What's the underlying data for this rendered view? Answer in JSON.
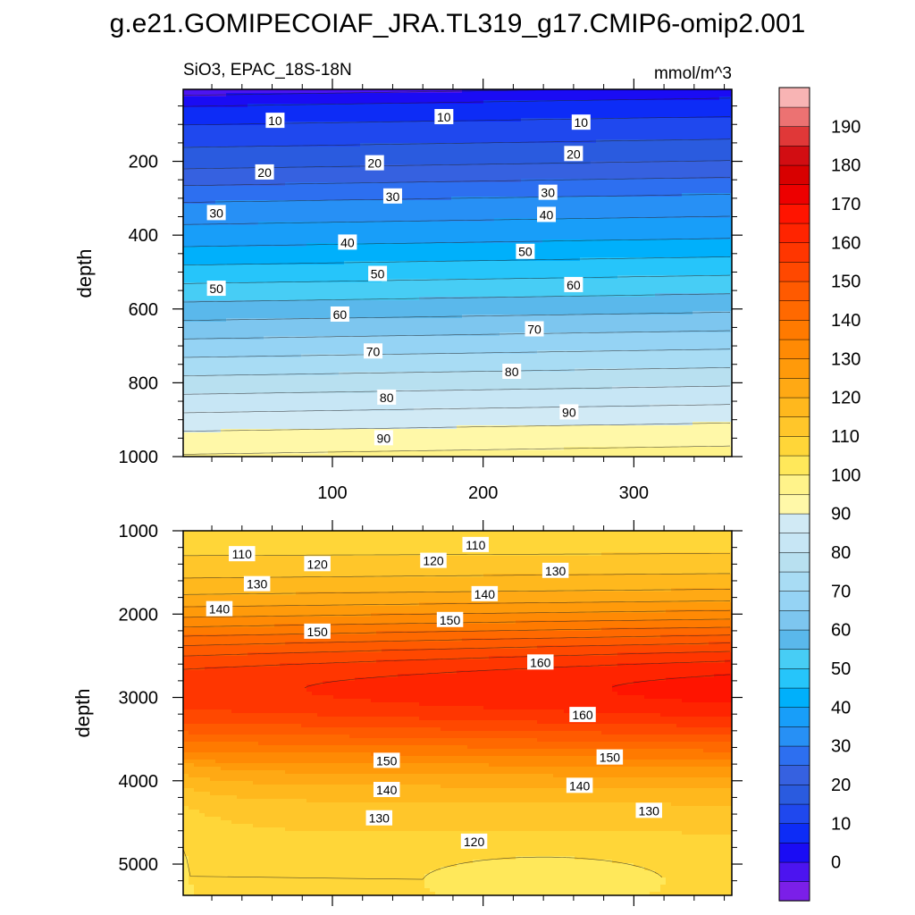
{
  "figure": {
    "title": "g.e21.GOMIPECOIAF_JRA.TL319_g17.CMIP6-omip2.001",
    "left_subtitle": "SiO3, EPAC_18S-18N",
    "right_subtitle": "mmol/m^3"
  },
  "chart_data": [
    {
      "type": "heatmap",
      "panel": "upper",
      "title": "SiO3, EPAC_18S-18N",
      "units": "mmol/m^3",
      "xlabel": "",
      "ylabel": "depth",
      "xlim": [
        1,
        365
      ],
      "ylim": [
        1000,
        5
      ],
      "x_ticks": [
        100,
        200,
        300
      ],
      "y_ticks": [
        200,
        400,
        600,
        800,
        1000
      ],
      "contour_interval": 5,
      "contour_labels": [
        {
          "text": "10",
          "x": 62,
          "y": 90
        },
        {
          "text": "10",
          "x": 174,
          "y": 80
        },
        {
          "text": "10",
          "x": 265,
          "y": 95
        },
        {
          "text": "20",
          "x": 55,
          "y": 230
        },
        {
          "text": "20",
          "x": 128,
          "y": 205
        },
        {
          "text": "20",
          "x": 260,
          "y": 180
        },
        {
          "text": "30",
          "x": 23,
          "y": 340
        },
        {
          "text": "30",
          "x": 140,
          "y": 295
        },
        {
          "text": "30",
          "x": 243,
          "y": 285
        },
        {
          "text": "40",
          "x": 110,
          "y": 420
        },
        {
          "text": "40",
          "x": 242,
          "y": 345
        },
        {
          "text": "50",
          "x": 23,
          "y": 545
        },
        {
          "text": "50",
          "x": 130,
          "y": 505
        },
        {
          "text": "50",
          "x": 228,
          "y": 445
        },
        {
          "text": "60",
          "x": 105,
          "y": 615
        },
        {
          "text": "60",
          "x": 260,
          "y": 535
        },
        {
          "text": "70",
          "x": 127,
          "y": 715
        },
        {
          "text": "70",
          "x": 234,
          "y": 655
        },
        {
          "text": "80",
          "x": 136,
          "y": 840
        },
        {
          "text": "80",
          "x": 219,
          "y": 770
        },
        {
          "text": "90",
          "x": 134,
          "y": 950
        },
        {
          "text": "90",
          "x": 257,
          "y": 880
        }
      ]
    },
    {
      "type": "heatmap",
      "panel": "lower",
      "xlabel": "",
      "ylabel": "depth",
      "xlim": [
        1,
        365
      ],
      "ylim": [
        5375,
        1000
      ],
      "x_ticks": [
        100,
        200,
        300
      ],
      "y_ticks": [
        1000,
        2000,
        3000,
        4000,
        5000
      ],
      "contour_interval": 5,
      "contour_labels": [
        {
          "text": "110",
          "x": 40,
          "y": 1280
        },
        {
          "text": "110",
          "x": 195,
          "y": 1170
        },
        {
          "text": "120",
          "x": 90,
          "y": 1400
        },
        {
          "text": "120",
          "x": 167,
          "y": 1360
        },
        {
          "text": "130",
          "x": 50,
          "y": 1640
        },
        {
          "text": "130",
          "x": 248,
          "y": 1480
        },
        {
          "text": "140",
          "x": 25,
          "y": 1940
        },
        {
          "text": "140",
          "x": 201,
          "y": 1760
        },
        {
          "text": "150",
          "x": 90,
          "y": 2210
        },
        {
          "text": "150",
          "x": 178,
          "y": 2070
        },
        {
          "text": "160",
          "x": 238,
          "y": 2580
        },
        {
          "text": "160",
          "x": 266,
          "y": 3210
        },
        {
          "text": "150",
          "x": 136,
          "y": 3760
        },
        {
          "text": "150",
          "x": 284,
          "y": 3720
        },
        {
          "text": "140",
          "x": 136,
          "y": 4110
        },
        {
          "text": "140",
          "x": 264,
          "y": 4060
        },
        {
          "text": "130",
          "x": 131,
          "y": 4450
        },
        {
          "text": "130",
          "x": 310,
          "y": 4360
        },
        {
          "text": "120",
          "x": 194,
          "y": 4730
        }
      ]
    }
  ],
  "colorbar": {
    "levels": [
      "0",
      "10",
      "20",
      "30",
      "40",
      "50",
      "60",
      "70",
      "80",
      "90",
      "100",
      "110",
      "120",
      "130",
      "140",
      "150",
      "160",
      "170",
      "180",
      "190"
    ],
    "colors": [
      "#7b1fe8",
      "#4c14f0",
      "#1a0cf4",
      "#0d2cf6",
      "#1f48ee",
      "#2a5bdf",
      "#3661e0",
      "#2d6ff0",
      "#2790f5",
      "#189ef9",
      "#00b0fb",
      "#26c5fa",
      "#47cdf5",
      "#5ab8eb",
      "#7dc6ef",
      "#95d3f4",
      "#a8dcf4",
      "#b8e0f0",
      "#c7e6f5",
      "#d1eaf5",
      "#fff8a8",
      "#fff38a",
      "#ffe85a",
      "#ffd638",
      "#ffc62a",
      "#ffb81d",
      "#ffa914",
      "#ff9a0a",
      "#ff8a04",
      "#ff7a00",
      "#ff6900",
      "#ff5a00",
      "#ff4800",
      "#ff3600",
      "#ff2400",
      "#ff1400",
      "#ed0000",
      "#d80000",
      "#d20d12",
      "#e03838",
      "#ec7272",
      "#f8b4b4"
    ]
  }
}
